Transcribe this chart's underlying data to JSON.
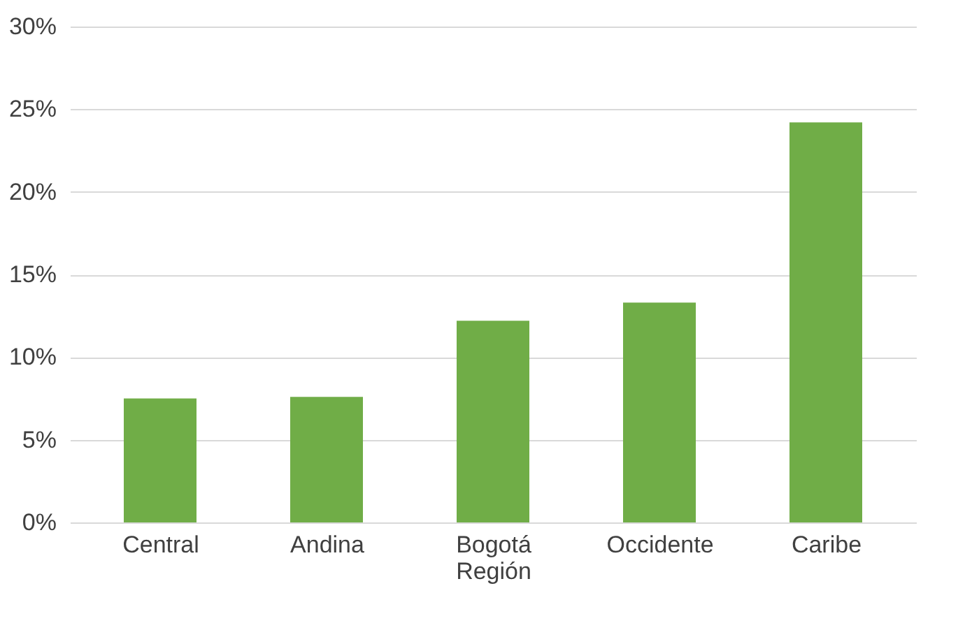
{
  "chart_data": {
    "type": "bar",
    "categories": [
      "Central",
      "Andina",
      "Bogotá Región",
      "Occidente",
      "Caribe"
    ],
    "values": [
      7.5,
      7.6,
      12.2,
      13.3,
      24.2
    ],
    "color": "#70ad47",
    "ylim": [
      0,
      30
    ],
    "yticks": [
      {
        "value": 0,
        "label": "0%"
      },
      {
        "value": 5,
        "label": "5%"
      },
      {
        "value": 10,
        "label": "10%"
      },
      {
        "value": 15,
        "label": "15%"
      },
      {
        "value": 20,
        "label": "20%"
      },
      {
        "value": 25,
        "label": "25%"
      },
      {
        "value": 30,
        "label": "30%"
      }
    ],
    "grid": "y"
  }
}
